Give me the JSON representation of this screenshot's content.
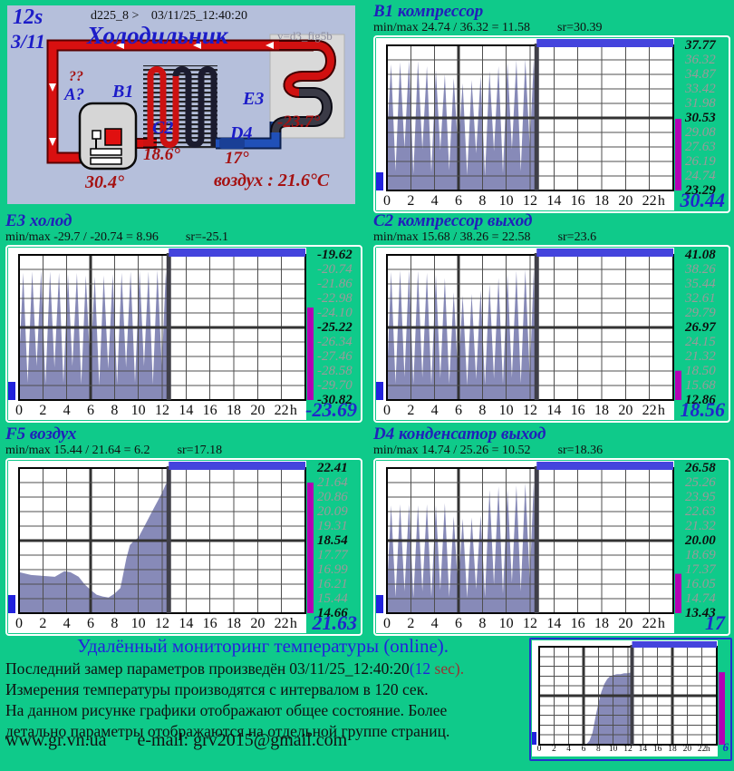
{
  "colors": {
    "page_bg": "#0fca8a",
    "diagram_bg": "#b5bfdb",
    "accent_blue": "#2020bb",
    "value_blue": "#2126cc",
    "dark_red": "#a51212",
    "series_fill": "#878ab8",
    "top_bar_blue": "#4444dd",
    "range_bar_magenta": "#b400b4",
    "hot_pipe_red": "#d81010",
    "cold_pipe_blue": "#2050b8"
  },
  "header_diagram": {
    "interval": "12s",
    "date": "3/11",
    "device": "d225_8  >",
    "timestamp": "03/11/25_12:40:20",
    "title": "Холодильник",
    "version": "v=d3_fig5b",
    "q_red": "??",
    "q_blue": "A?",
    "b1": "B1",
    "b1_temp": "30.4°",
    "c2": "C2",
    "c2_temp": "18.6°",
    "d4": "D4",
    "d4_temp": "17°",
    "e3": "E3",
    "e3_temp": "-23.7°",
    "air": "воздух : 21.6°C"
  },
  "chart_data": [
    {
      "id": "b1",
      "type": "area",
      "title": "B1 компрессор",
      "stats": "min/max   24.74 / 36.32 = 11.58",
      "sr": "sr=30.39",
      "y_ticks": [
        "37.77",
        "36.32",
        "34.87",
        "33.42",
        "31.98",
        "30.53",
        "29.08",
        "27.63",
        "26.19",
        "24.74",
        "23.29"
      ],
      "y_scale": [
        37.77,
        23.29
      ],
      "x_ticks": [
        "0",
        "2",
        "4",
        "6",
        "8",
        "10",
        "12",
        "14",
        "16",
        "18",
        "20",
        "22"
      ],
      "x_unit": "h",
      "x_range": [
        0,
        24
      ],
      "marker_x": 12.55,
      "current_label": "30.44",
      "current_value": 30.44,
      "points": [
        [
          0,
          28.5
        ],
        [
          0.35,
          35.9
        ],
        [
          0.72,
          25.2
        ],
        [
          1.1,
          36.1
        ],
        [
          1.47,
          27.5
        ],
        [
          1.85,
          36.3
        ],
        [
          2.22,
          24.9
        ],
        [
          2.6,
          36.2
        ],
        [
          2.97,
          27.4
        ],
        [
          3.35,
          35.7
        ],
        [
          3.72,
          25.1
        ],
        [
          4.1,
          35.3
        ],
        [
          4.47,
          27.3
        ],
        [
          4.85,
          34.9
        ],
        [
          5.22,
          25.3
        ],
        [
          5.6,
          34.5
        ],
        [
          5.97,
          27.2
        ],
        [
          6.35,
          34.0
        ],
        [
          6.72,
          24.8
        ],
        [
          7.1,
          34.3
        ],
        [
          7.47,
          27.0
        ],
        [
          7.85,
          34.7
        ],
        [
          8.22,
          24.7
        ],
        [
          8.6,
          35.2
        ],
        [
          8.97,
          27.2
        ],
        [
          9.35,
          35.7
        ],
        [
          9.72,
          25.0
        ],
        [
          10.1,
          36.1
        ],
        [
          10.47,
          27.4
        ],
        [
          10.85,
          36.3
        ],
        [
          11.22,
          25.2
        ],
        [
          11.6,
          36.4
        ],
        [
          11.97,
          27.6
        ],
        [
          12.3,
          36.3
        ],
        [
          12.5,
          30.44
        ]
      ]
    },
    {
      "id": "e3",
      "type": "area",
      "title": "E3 холод",
      "stats": "min/max   -29.7 / -20.74 = 8.96",
      "sr": "sr=-25.1",
      "y_ticks": [
        "-19.62",
        "-20.74",
        "-21.86",
        "-22.98",
        "-24.10",
        "-25.22",
        "-26.34",
        "-27.46",
        "-28.58",
        "-29.70",
        "-30.82"
      ],
      "y_scale": [
        -19.62,
        -30.82
      ],
      "x_ticks": [
        "0",
        "2",
        "4",
        "6",
        "8",
        "10",
        "12",
        "14",
        "16",
        "18",
        "20",
        "22"
      ],
      "x_unit": "h",
      "x_range": [
        0,
        24
      ],
      "marker_x": 12.55,
      "current_label": "-23.69",
      "current_value": -23.69,
      "points": [
        [
          0,
          -28.0
        ],
        [
          0.35,
          -21.0
        ],
        [
          0.72,
          -29.5
        ],
        [
          1.1,
          -20.9
        ],
        [
          1.47,
          -28.2
        ],
        [
          1.85,
          -20.8
        ],
        [
          2.22,
          -29.6
        ],
        [
          2.6,
          -20.9
        ],
        [
          2.97,
          -28.3
        ],
        [
          3.35,
          -21.0
        ],
        [
          3.72,
          -29.5
        ],
        [
          4.1,
          -21.1
        ],
        [
          4.47,
          -28.2
        ],
        [
          4.85,
          -21.0
        ],
        [
          5.22,
          -29.6
        ],
        [
          5.6,
          -21.2
        ],
        [
          5.97,
          -28.3
        ],
        [
          6.35,
          -21.3
        ],
        [
          6.72,
          -29.7
        ],
        [
          7.1,
          -21.2
        ],
        [
          7.47,
          -28.4
        ],
        [
          7.85,
          -21.1
        ],
        [
          8.22,
          -29.6
        ],
        [
          8.6,
          -21.0
        ],
        [
          8.97,
          -28.3
        ],
        [
          9.35,
          -20.9
        ],
        [
          9.72,
          -29.5
        ],
        [
          10.1,
          -20.8
        ],
        [
          10.47,
          -28.2
        ],
        [
          10.85,
          -20.9
        ],
        [
          11.22,
          -29.6
        ],
        [
          11.6,
          -20.8
        ],
        [
          11.97,
          -28.3
        ],
        [
          12.3,
          -20.9
        ],
        [
          12.5,
          -23.69
        ]
      ]
    },
    {
      "id": "c2",
      "type": "area",
      "title": "C2 компрессор выход",
      "stats": "min/max   15.68 / 38.26 = 22.58",
      "sr": "sr=23.6",
      "y_ticks": [
        "41.08",
        "38.26",
        "35.44",
        "32.61",
        "29.79",
        "26.97",
        "24.15",
        "21.32",
        "18.50",
        "15.68",
        "12.86"
      ],
      "y_scale": [
        41.08,
        12.86
      ],
      "x_ticks": [
        "0",
        "2",
        "4",
        "6",
        "8",
        "10",
        "12",
        "14",
        "16",
        "18",
        "20",
        "22"
      ],
      "x_unit": "h",
      "x_range": [
        0,
        24
      ],
      "marker_x": 12.55,
      "current_label": "18.56",
      "current_value": 18.56,
      "points": [
        [
          0,
          17.2
        ],
        [
          0.35,
          37.8
        ],
        [
          0.72,
          16.0
        ],
        [
          1.1,
          38.1
        ],
        [
          1.47,
          17.3
        ],
        [
          1.85,
          38.2
        ],
        [
          2.22,
          15.8
        ],
        [
          2.6,
          38.0
        ],
        [
          2.97,
          17.2
        ],
        [
          3.35,
          37.6
        ],
        [
          3.72,
          15.9
        ],
        [
          4.1,
          37.2
        ],
        [
          4.47,
          17.1
        ],
        [
          4.85,
          36.6
        ],
        [
          5.22,
          16.0
        ],
        [
          5.6,
          33.8
        ],
        [
          5.97,
          17.0
        ],
        [
          6.35,
          33.2
        ],
        [
          6.72,
          15.7
        ],
        [
          7.1,
          33.5
        ],
        [
          7.47,
          16.9
        ],
        [
          7.85,
          34.2
        ],
        [
          8.22,
          15.8
        ],
        [
          8.6,
          35.4
        ],
        [
          8.97,
          17.0
        ],
        [
          9.35,
          36.6
        ],
        [
          9.72,
          16.0
        ],
        [
          10.1,
          37.4
        ],
        [
          10.47,
          17.2
        ],
        [
          10.85,
          38.0
        ],
        [
          11.22,
          16.1
        ],
        [
          11.6,
          38.2
        ],
        [
          11.97,
          17.4
        ],
        [
          12.3,
          38.1
        ],
        [
          12.5,
          18.56
        ]
      ]
    },
    {
      "id": "f5",
      "type": "area",
      "title": "F5 воздух",
      "stats": "min/max   15.44 / 21.64 = 6.2",
      "sr": "sr=17.18",
      "y_ticks": [
        "22.41",
        "21.64",
        "20.86",
        "20.09",
        "19.31",
        "18.54",
        "17.77",
        "16.99",
        "16.21",
        "15.44",
        "14.66"
      ],
      "y_scale": [
        22.41,
        14.66
      ],
      "x_ticks": [
        "0",
        "2",
        "4",
        "6",
        "8",
        "10",
        "12",
        "14",
        "16",
        "18",
        "20",
        "22"
      ],
      "x_unit": "h",
      "x_range": [
        0,
        24
      ],
      "marker_x": 12.55,
      "current_label": "21.63",
      "current_value": 21.63,
      "points": [
        [
          0,
          16.85
        ],
        [
          1,
          16.7
        ],
        [
          2,
          16.65
        ],
        [
          3,
          16.6
        ],
        [
          3.8,
          16.9
        ],
        [
          4.3,
          16.85
        ],
        [
          5,
          16.6
        ],
        [
          5.5,
          16.2
        ],
        [
          6,
          15.9
        ],
        [
          6.5,
          15.65
        ],
        [
          7,
          15.55
        ],
        [
          7.5,
          15.5
        ],
        [
          8,
          15.7
        ],
        [
          8.5,
          16.0
        ],
        [
          9,
          17.6
        ],
        [
          9.3,
          18.3
        ],
        [
          9.6,
          18.5
        ],
        [
          10,
          18.7
        ],
        [
          10.5,
          19.3
        ],
        [
          11,
          19.9
        ],
        [
          11.5,
          20.5
        ],
        [
          12,
          21.1
        ],
        [
          12.3,
          21.55
        ],
        [
          12.5,
          21.63
        ]
      ]
    },
    {
      "id": "d4",
      "type": "area",
      "title": "D4 конденсатор выход",
      "stats": "min/max   14.74 / 25.26 = 10.52",
      "sr": "sr=18.36",
      "y_ticks": [
        "26.58",
        "25.26",
        "23.95",
        "22.63",
        "21.32",
        "20.00",
        "18.69",
        "17.37",
        "16.05",
        "14.74",
        "13.43"
      ],
      "y_scale": [
        26.58,
        13.43
      ],
      "x_ticks": [
        "0",
        "2",
        "4",
        "6",
        "8",
        "10",
        "12",
        "14",
        "16",
        "18",
        "20",
        "22"
      ],
      "x_unit": "h",
      "x_range": [
        0,
        24
      ],
      "marker_x": 12.55,
      "current_label": "17",
      "current_value": 17.0,
      "points": [
        [
          0,
          15.5
        ],
        [
          0.35,
          23.2
        ],
        [
          0.72,
          14.9
        ],
        [
          1.1,
          23.3
        ],
        [
          1.47,
          15.4
        ],
        [
          1.85,
          23.3
        ],
        [
          2.22,
          14.8
        ],
        [
          2.6,
          23.2
        ],
        [
          2.97,
          15.4
        ],
        [
          3.35,
          23.3
        ],
        [
          3.72,
          14.9
        ],
        [
          4.1,
          23.2
        ],
        [
          4.47,
          15.5
        ],
        [
          4.85,
          23.4
        ],
        [
          5.22,
          14.9
        ],
        [
          5.6,
          22.2
        ],
        [
          5.97,
          15.5
        ],
        [
          6.35,
          22.0
        ],
        [
          6.72,
          14.8
        ],
        [
          7.1,
          22.1
        ],
        [
          7.47,
          15.6
        ],
        [
          7.85,
          22.3
        ],
        [
          8.22,
          14.9
        ],
        [
          8.6,
          24.6
        ],
        [
          8.97,
          16.0
        ],
        [
          9.35,
          24.9
        ],
        [
          9.72,
          15.2
        ],
        [
          10.1,
          24.7
        ],
        [
          10.47,
          16.2
        ],
        [
          10.85,
          25.0
        ],
        [
          11.22,
          15.4
        ],
        [
          11.6,
          25.2
        ],
        [
          11.97,
          16.4
        ],
        [
          12.3,
          25.3
        ],
        [
          12.5,
          17.0
        ]
      ]
    },
    {
      "id": "overview",
      "type": "area",
      "title": "",
      "stats": "",
      "sr": "",
      "y_ticks": [],
      "y_scale": [
        1,
        0
      ],
      "x_ticks": [
        "0",
        "2",
        "4",
        "6",
        "8",
        "10",
        "12",
        "14",
        "16",
        "18",
        "20",
        "22"
      ],
      "x_unit": "h",
      "x_range": [
        0,
        24
      ],
      "marker_x": 12.55,
      "corner_label": "6",
      "current_value": 0.74,
      "points": [
        [
          0,
          0
        ],
        [
          6.3,
          0
        ],
        [
          6.8,
          0.04
        ],
        [
          7.2,
          0.12
        ],
        [
          7.6,
          0.28
        ],
        [
          8.0,
          0.42
        ],
        [
          8.4,
          0.54
        ],
        [
          8.8,
          0.62
        ],
        [
          9.2,
          0.67
        ],
        [
          9.6,
          0.7
        ],
        [
          10.0,
          0.71
        ],
        [
          10.5,
          0.72
        ],
        [
          11,
          0.72
        ],
        [
          11.5,
          0.73
        ],
        [
          12,
          0.73
        ],
        [
          12.5,
          0.74
        ]
      ]
    }
  ],
  "footer": {
    "heading": "Удалённый мониторинг температуры (online).",
    "line1_prefix": "Последний замер параметров произведён",
    "line1_time": "03/11/25_12:40:20",
    "line1_mark": "(12",
    "line1_sec": " sec).",
    "line2": "Измерения температуры  производятся с интервалом в 120 сек.",
    "line3": "На данном рисунке графики отображают общее состояние. Более",
    "line4": "детально параметры отображаются на отдельной группе страниц.",
    "website": "www.gr.vn.ua",
    "email": "e-mail: grv2015@gmail.com"
  }
}
